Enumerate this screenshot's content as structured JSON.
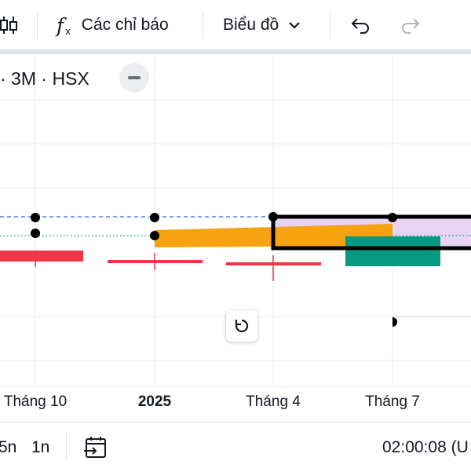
{
  "toolbar": {
    "indicators_label": "Các chỉ báo",
    "chart_type_label": "Biểu đồ"
  },
  "legend": {
    "symbol_info": "· 3M · HSX"
  },
  "time_axis": {
    "ticks": [
      "Tháng 10",
      "2025",
      "Tháng 4",
      "Tháng 7"
    ]
  },
  "bottom_bar": {
    "range_5d": "5n",
    "range_1d": "1n",
    "clock": "02:00:08 (U"
  },
  "colors": {
    "red": "#f23645",
    "orange": "#f7a30f",
    "teal": "#089981",
    "lilac": "#e9d3f3",
    "blue_dash": "#2962ff",
    "green_dot": "#26a69a"
  }
}
